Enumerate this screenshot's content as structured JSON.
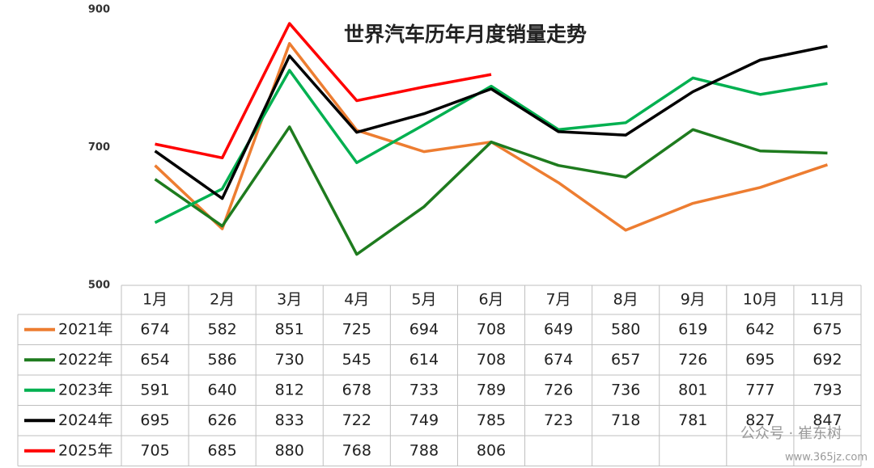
{
  "chart_data": {
    "type": "line",
    "title": "世界汽车历年月度销量走势",
    "categories": [
      "1月",
      "2月",
      "3月",
      "4月",
      "5月",
      "6月",
      "7月",
      "8月",
      "9月",
      "10月",
      "11月"
    ],
    "series": [
      {
        "name": "2021年",
        "color": "#ed7d31",
        "values": [
          674,
          582,
          851,
          725,
          694,
          708,
          649,
          580,
          619,
          642,
          675
        ]
      },
      {
        "name": "2022年",
        "color": "#1e7b1e",
        "values": [
          654,
          586,
          730,
          545,
          614,
          708,
          674,
          657,
          726,
          695,
          692
        ]
      },
      {
        "name": "2023年",
        "color": "#00b050",
        "values": [
          591,
          640,
          812,
          678,
          733,
          789,
          726,
          736,
          801,
          777,
          793
        ]
      },
      {
        "name": "2024年",
        "color": "#000000",
        "values": [
          695,
          626,
          833,
          722,
          749,
          785,
          723,
          718,
          781,
          827,
          847
        ]
      },
      {
        "name": "2025年",
        "color": "#ff0000",
        "values": [
          705,
          685,
          880,
          768,
          788,
          806,
          null,
          null,
          null,
          null,
          null
        ]
      }
    ],
    "ylim": [
      500,
      900
    ],
    "yticks": [
      500,
      700,
      900
    ],
    "grid": false,
    "watermark": [
      "公众号 · 崔东树",
      "www.365jz.com"
    ]
  }
}
